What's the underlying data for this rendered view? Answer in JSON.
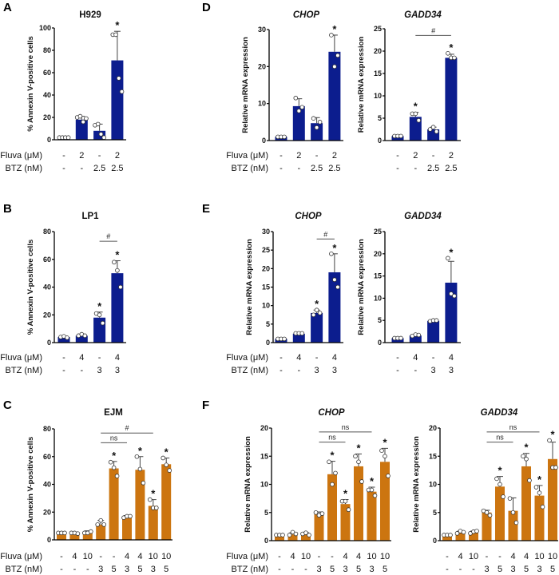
{
  "colors": {
    "blue": "#0c1d8e",
    "orange": "#cc7510"
  },
  "chart_data": [
    {
      "id": "A",
      "panel": "A",
      "type": "bar",
      "title": "H929",
      "italic": false,
      "ylabel": "% Annexin V-positive cells",
      "ylim": [
        0,
        100
      ],
      "ticks": [
        0,
        20,
        40,
        60,
        80,
        100
      ],
      "color": "blue",
      "row_header": [
        "Fluva (μM)",
        "BTZ (nM)"
      ],
      "fluva": [
        "-",
        "2",
        "-",
        "2"
      ],
      "btz": [
        "-",
        "-",
        "2.5",
        "2.5"
      ],
      "means": [
        2,
        18,
        8,
        71
      ],
      "errors": [
        0.5,
        3,
        6,
        26
      ],
      "points": [
        [
          2,
          2,
          2,
          2
        ],
        [
          20,
          21,
          16,
          19
        ],
        [
          13,
          14,
          5,
          2
        ],
        [
          94,
          94,
          55,
          43
        ]
      ],
      "stars": [
        false,
        false,
        false,
        true
      ],
      "brackets": []
    },
    {
      "id": "D1",
      "panel": "D",
      "type": "bar",
      "title": "CHOP",
      "italic": true,
      "ylabel": "Relative mRNA expression",
      "ylim": [
        0,
        30
      ],
      "ticks": [
        0,
        10,
        20,
        30
      ],
      "color": "blue",
      "row_header": [
        "Fluva (μM)",
        "BTZ (nM)"
      ],
      "fluva": [
        "-",
        "2",
        "-",
        "2"
      ],
      "btz": [
        "-",
        "-",
        "2.5",
        "2.5"
      ],
      "means": [
        1,
        9.3,
        4.7,
        24
      ],
      "errors": [
        0.2,
        2,
        1.5,
        4.5
      ],
      "points": [
        [
          1,
          1,
          1
        ],
        [
          11.5,
          8,
          9
        ],
        [
          6,
          3.5,
          5
        ],
        [
          28.5,
          20,
          23
        ]
      ],
      "stars": [
        false,
        false,
        false,
        true
      ],
      "brackets": []
    },
    {
      "id": "D2",
      "panel": "",
      "type": "bar",
      "title": "GADD34",
      "italic": true,
      "ylabel": "Relative mRNA expression",
      "ylim": [
        0,
        25
      ],
      "ticks": [
        0,
        5,
        10,
        15,
        20,
        25
      ],
      "color": "blue",
      "fluva": [
        "-",
        "2",
        "-",
        "2"
      ],
      "btz": [
        "-",
        "-",
        "2.5",
        "2.5"
      ],
      "means": [
        1,
        5.3,
        2.5,
        18.5
      ],
      "errors": [
        0.1,
        1,
        0.5,
        0.8
      ],
      "points": [
        [
          1,
          1,
          1
        ],
        [
          6,
          6,
          4.5
        ],
        [
          2.5,
          3,
          2
        ],
        [
          19.5,
          18.5,
          18.5
        ]
      ],
      "stars": [
        false,
        true,
        false,
        true
      ],
      "brackets": [
        {
          "from": 2,
          "to": 4,
          "at": 23.5,
          "label": "#"
        }
      ]
    },
    {
      "id": "B",
      "panel": "B",
      "type": "bar",
      "title": "LP1",
      "italic": false,
      "ylabel": "% Annexin V-positive cells",
      "ylim": [
        0,
        80
      ],
      "ticks": [
        0,
        20,
        40,
        60,
        80
      ],
      "color": "blue",
      "row_header": [
        "Fluva (μM)",
        "BTZ (nM)"
      ],
      "fluva": [
        "-",
        "4",
        "-",
        "4"
      ],
      "btz": [
        "-",
        "-",
        "3",
        "3"
      ],
      "means": [
        4,
        5,
        18,
        50
      ],
      "errors": [
        0.5,
        1,
        4,
        9
      ],
      "points": [
        [
          4,
          4.5,
          3.5
        ],
        [
          5,
          6,
          5
        ],
        [
          21,
          20,
          14
        ],
        [
          58,
          52,
          40
        ]
      ],
      "stars": [
        false,
        false,
        true,
        true
      ],
      "brackets": [
        {
          "from": 3,
          "to": 4,
          "at": 73,
          "label": "#"
        }
      ]
    },
    {
      "id": "E1",
      "panel": "E",
      "type": "bar",
      "title": "CHOP",
      "italic": true,
      "ylabel": "Relative mRNA expression",
      "ylim": [
        0,
        30
      ],
      "ticks": [
        0,
        5,
        10,
        15,
        20,
        25,
        30
      ],
      "color": "blue",
      "row_header": [
        "Fluva (μM)",
        "BTZ (nM)"
      ],
      "fluva": [
        "-",
        "4",
        "-",
        "4"
      ],
      "btz": [
        "-",
        "-",
        "3",
        "3"
      ],
      "means": [
        1,
        2.4,
        8,
        19
      ],
      "errors": [
        0.2,
        0.2,
        0.8,
        5
      ],
      "points": [
        [
          1,
          1,
          1
        ],
        [
          2.5,
          2.5,
          2.5
        ],
        [
          7.5,
          8.8,
          8
        ],
        [
          24,
          17,
          15
        ]
      ],
      "stars": [
        false,
        false,
        true,
        true
      ],
      "brackets": [
        {
          "from": 3,
          "to": 4,
          "at": 28,
          "label": "#"
        }
      ]
    },
    {
      "id": "E2",
      "panel": "",
      "type": "bar",
      "title": "GADD34",
      "italic": true,
      "ylabel": "Relative mRNA expression",
      "ylim": [
        0,
        25
      ],
      "ticks": [
        0,
        5,
        10,
        15,
        20,
        25
      ],
      "color": "blue",
      "fluva": [
        "-",
        "4",
        "-",
        "4"
      ],
      "btz": [
        "-",
        "-",
        "3",
        "3"
      ],
      "means": [
        1,
        1.6,
        4.9,
        13.5
      ],
      "errors": [
        0.1,
        0.2,
        0.1,
        4.8
      ],
      "points": [
        [
          1,
          1,
          1
        ],
        [
          1.5,
          1.8,
          1.7
        ],
        [
          4.8,
          5,
          5
        ],
        [
          19,
          11,
          10.5
        ]
      ],
      "stars": [
        false,
        false,
        false,
        true
      ],
      "brackets": []
    },
    {
      "id": "C",
      "panel": "C",
      "type": "bar",
      "title": "EJM",
      "italic": false,
      "ylabel": "% Annexin V-positive cells",
      "ylim": [
        0,
        80
      ],
      "ticks": [
        0,
        20,
        40,
        60,
        80
      ],
      "color": "orange",
      "row_header": [
        "Fluva (μM)",
        "BTZ (nM)"
      ],
      "fluva": [
        "-",
        "4",
        "10",
        "-",
        "-",
        "4",
        "4",
        "10",
        "10"
      ],
      "btz": [
        "-",
        "-",
        "-",
        "3",
        "5",
        "3",
        "5",
        "3",
        "5"
      ],
      "means": [
        5,
        5,
        5.5,
        11,
        51.5,
        16.5,
        50.5,
        24.5,
        54.5
      ],
      "errors": [
        0.3,
        0.3,
        1,
        3,
        5,
        1,
        9.5,
        4.5,
        4.5
      ],
      "points": [
        [
          5,
          5,
          5
        ],
        [
          5,
          5,
          4.5
        ],
        [
          5,
          5,
          6
        ],
        [
          11,
          14,
          11
        ],
        [
          56,
          52,
          46
        ],
        [
          16,
          17,
          17
        ],
        [
          60,
          51,
          41
        ],
        [
          29,
          23,
          23
        ],
        [
          59,
          54,
          50
        ]
      ],
      "stars": [
        false,
        false,
        false,
        false,
        true,
        false,
        true,
        true,
        true
      ],
      "brackets": [
        {
          "from": 4,
          "to": 6,
          "at": 70,
          "label": "ns"
        },
        {
          "from": 4,
          "to": 8,
          "at": 77,
          "label": "#"
        }
      ]
    },
    {
      "id": "F1",
      "panel": "F",
      "type": "bar",
      "title": "CHOP",
      "italic": true,
      "ylabel": "Relative mRNA expression",
      "ylim": [
        0,
        20
      ],
      "ticks": [
        0,
        5,
        10,
        15,
        20
      ],
      "color": "orange",
      "row_header": [
        "Fluva (μM)",
        "BTZ (nM)"
      ],
      "fluva": [
        "-",
        "4",
        "10",
        "-",
        "-",
        "4",
        "4",
        "10",
        "10"
      ],
      "btz": [
        "-",
        "-",
        "-",
        "3",
        "5",
        "3",
        "5",
        "3",
        "5"
      ],
      "means": [
        1,
        1.1,
        1.2,
        4.7,
        11.8,
        6.5,
        13.2,
        8.7,
        14
      ],
      "errors": [
        0.1,
        0.3,
        0.2,
        0.4,
        2.3,
        0.8,
        2.2,
        0.8,
        2.4
      ],
      "points": [
        [
          1,
          1,
          1
        ],
        [
          1,
          1.5,
          1.2
        ],
        [
          1.2,
          1.4,
          1
        ],
        [
          5,
          4.5,
          4.8
        ],
        [
          14,
          10,
          12
        ],
        [
          7,
          7,
          5.5
        ],
        [
          15,
          14,
          10.5
        ],
        [
          9,
          9,
          8
        ],
        [
          16,
          15,
          11.5
        ]
      ],
      "stars": [
        false,
        false,
        false,
        false,
        true,
        true,
        true,
        true,
        true
      ],
      "brackets": [
        {
          "from": 4,
          "to": 6,
          "at": 17.5,
          "label": "ns"
        },
        {
          "from": 4,
          "to": 8,
          "at": 19.3,
          "label": "ns"
        }
      ]
    },
    {
      "id": "F2",
      "panel": "",
      "type": "bar",
      "title": "GADD34",
      "italic": true,
      "ylabel": "Relative mRNA expression",
      "ylim": [
        0,
        20
      ],
      "ticks": [
        0,
        5,
        10,
        15,
        20
      ],
      "color": "orange",
      "fluva": [
        "-",
        "4",
        "10",
        "-",
        "-",
        "4",
        "4",
        "10",
        "10"
      ],
      "btz": [
        "-",
        "-",
        "-",
        "3",
        "5",
        "3",
        "5",
        "3",
        "5"
      ],
      "means": [
        1,
        1.5,
        1.5,
        5,
        9.6,
        5.3,
        13.2,
        8,
        14.5
      ],
      "errors": [
        0.1,
        0.2,
        0.2,
        0.4,
        1.8,
        2.3,
        2.3,
        1.8,
        3
      ],
      "points": [
        [
          1,
          1,
          1
        ],
        [
          1.3,
          1.7,
          1.5
        ],
        [
          1.3,
          1.6,
          1.7
        ],
        [
          5.3,
          5,
          4.5
        ],
        [
          11,
          10,
          7.8
        ],
        [
          7.5,
          5,
          3.2
        ],
        [
          15,
          14.5,
          10.7
        ],
        [
          9.5,
          8.5,
          6
        ],
        [
          17.8,
          13,
          13
        ]
      ],
      "stars": [
        false,
        false,
        false,
        false,
        true,
        false,
        true,
        true,
        true
      ],
      "brackets": [
        {
          "from": 4,
          "to": 6,
          "at": 17.5,
          "label": "ns"
        },
        {
          "from": 4,
          "to": 8,
          "at": 19.3,
          "label": "ns"
        }
      ]
    }
  ]
}
